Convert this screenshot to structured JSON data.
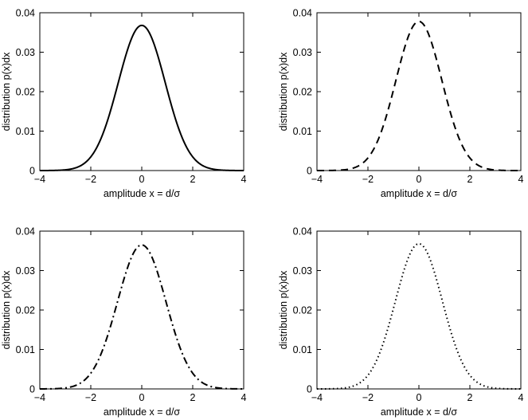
{
  "chart_data": [
    {
      "type": "line",
      "line_style": "solid",
      "title": "",
      "xlabel": "amplitude x = d/σ",
      "ylabel": "distribution p(x)dx",
      "xlim": [
        -4,
        4
      ],
      "ylim": [
        0,
        0.04
      ],
      "xticks": [
        -4,
        -2,
        0,
        2,
        4
      ],
      "xtick_labels": [
        "−4",
        "−2",
        "0",
        "2",
        "4"
      ],
      "yticks": [
        0,
        0.01,
        0.02,
        0.03,
        0.04
      ],
      "ytick_labels": [
        "0",
        "0.01",
        "0.02",
        "0.03",
        "0.04"
      ],
      "series": [
        {
          "name": "p(x)",
          "peak_x": 0,
          "peak_y": 0.0368,
          "sigma": 0.92
        }
      ]
    },
    {
      "type": "line",
      "line_style": "dashed",
      "title": "",
      "xlabel": "amplitude x = d/σ",
      "ylabel": "distribution p(x)dx",
      "xlim": [
        -4,
        4
      ],
      "ylim": [
        0,
        0.04
      ],
      "xticks": [
        -4,
        -2,
        0,
        2,
        4
      ],
      "xtick_labels": [
        "−4",
        "−2",
        "0",
        "2",
        "4"
      ],
      "yticks": [
        0,
        0.01,
        0.02,
        0.03,
        0.04
      ],
      "ytick_labels": [
        "0",
        "0.01",
        "0.02",
        "0.03",
        "0.04"
      ],
      "series": [
        {
          "name": "p(x)",
          "peak_x": 0,
          "peak_y": 0.0378,
          "sigma": 0.9
        }
      ]
    },
    {
      "type": "line",
      "line_style": "dashdot",
      "title": "",
      "xlabel": "amplitude x = d/σ",
      "ylabel": "distribution p(x)dx",
      "xlim": [
        -4,
        4
      ],
      "ylim": [
        0,
        0.04
      ],
      "xticks": [
        -4,
        -2,
        0,
        2,
        4
      ],
      "xtick_labels": [
        "−4",
        "−2",
        "0",
        "2",
        "4"
      ],
      "yticks": [
        0,
        0.01,
        0.02,
        0.03,
        0.04
      ],
      "ytick_labels": [
        "0",
        "0.01",
        "0.02",
        "0.03",
        "0.04"
      ],
      "series": [
        {
          "name": "p(x)",
          "peak_x": 0,
          "peak_y": 0.0365,
          "sigma": 0.95
        }
      ]
    },
    {
      "type": "line",
      "line_style": "dotted",
      "title": "",
      "xlabel": "amplitude x = d/σ",
      "ylabel": "distribution p(x)dx",
      "xlim": [
        -4,
        4
      ],
      "ylim": [
        0,
        0.04
      ],
      "xticks": [
        -4,
        -2,
        0,
        2,
        4
      ],
      "xtick_labels": [
        "−4",
        "−2",
        "0",
        "2",
        "4"
      ],
      "yticks": [
        0,
        0.01,
        0.02,
        0.03,
        0.04
      ],
      "ytick_labels": [
        "0",
        "0.01",
        "0.02",
        "0.03",
        "0.04"
      ],
      "series": [
        {
          "name": "p(x)",
          "peak_x": 0,
          "peak_y": 0.0368,
          "sigma": 0.92
        }
      ]
    }
  ]
}
